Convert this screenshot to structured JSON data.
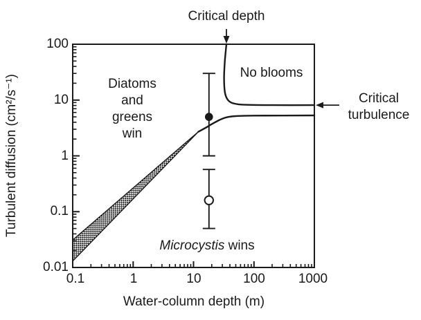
{
  "figure": {
    "background": "#ffffff",
    "ink": "#1a1a1a"
  },
  "chart_data": {
    "type": "line",
    "title": "",
    "xlabel": "Water-column depth (m)",
    "ylabel": "Turbulent diffusion (cm²/s⁻¹)",
    "x_scale": "log",
    "y_scale": "log",
    "xlim": [
      0.1,
      1000
    ],
    "ylim": [
      0.01,
      100
    ],
    "grid": false,
    "x_tick_labels": [
      "0.1",
      "1",
      "10",
      "100",
      "1000"
    ],
    "y_tick_labels": [
      "100",
      "10",
      "1",
      "0.1",
      "0.01"
    ],
    "regions": {
      "diatoms_line1": "Diatoms",
      "diatoms_line2": "and",
      "diatoms_line3": "greens",
      "diatoms_line4": "win",
      "no_blooms": "No blooms",
      "microcystis_italic": "Microcystis",
      "microcystis_rest": " wins"
    },
    "annotations": {
      "critical_depth": "Critical depth",
      "critical_turbulence_line1": "Critical",
      "critical_turbulence_line2": "turbulence",
      "critical_depth_value_m": 35,
      "critical_turbulence_value": 8.1
    },
    "series": [
      {
        "name": "critical-depth-boundary",
        "points": [
          [
            35,
            100
          ],
          [
            33,
            50
          ],
          [
            32,
            25
          ],
          [
            33,
            14
          ],
          [
            36,
            10.5
          ],
          [
            42,
            9
          ],
          [
            55,
            8.4
          ],
          [
            80,
            8.2
          ],
          [
            200,
            8.1
          ],
          [
            1000,
            8.1
          ]
        ]
      },
      {
        "name": "microcystis-boundary",
        "points": [
          [
            12,
            2.7
          ],
          [
            16,
            3.2
          ],
          [
            20,
            3.7
          ],
          [
            27,
            4.4
          ],
          [
            35,
            4.9
          ],
          [
            50,
            5.15
          ],
          [
            100,
            5.25
          ],
          [
            1000,
            5.3
          ]
        ]
      },
      {
        "name": "transition-band-top-edge",
        "points": [
          [
            0.1,
            0.031
          ],
          [
            12,
            2.7
          ]
        ]
      },
      {
        "name": "transition-band-bottom-edge",
        "points": [
          [
            0.1,
            0.013
          ],
          [
            12,
            2.7
          ]
        ]
      }
    ],
    "points": [
      {
        "name": "mixed-observation",
        "marker": "filled-circle",
        "x": 18,
        "y": 5,
        "y_lo": 1,
        "y_hi": 30
      },
      {
        "name": "stratified-observation",
        "marker": "open-circle",
        "x": 18,
        "y": 0.16,
        "y_lo": 0.05,
        "y_hi": 0.57
      }
    ]
  }
}
